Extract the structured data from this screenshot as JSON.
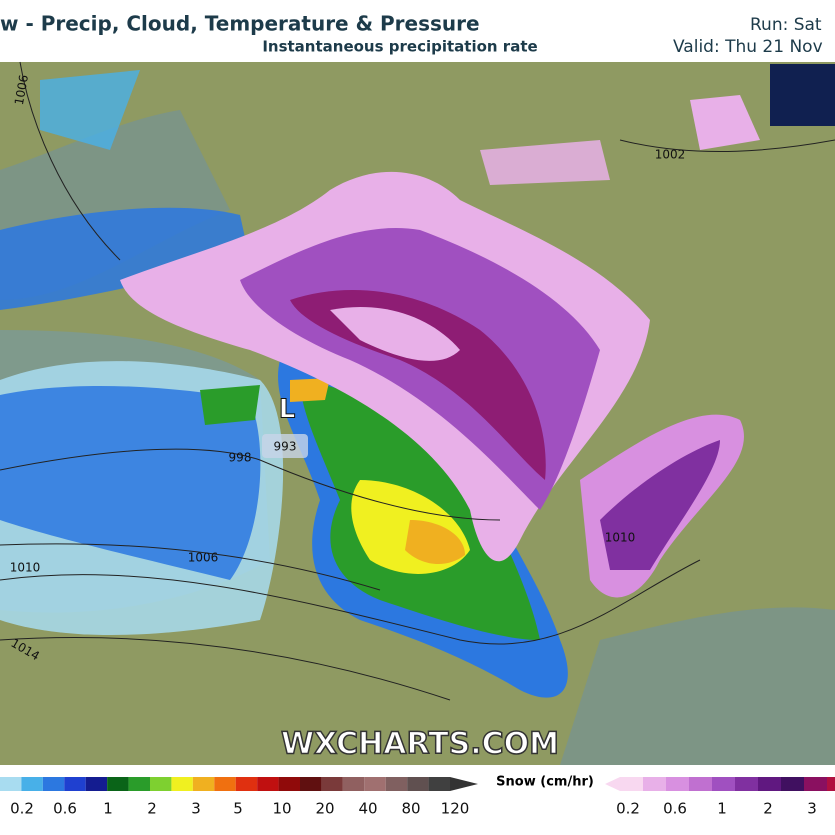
{
  "header": {
    "title": "w - Precip, Cloud, Temperature & Pressure",
    "subtitle": "Instantaneous precipitation rate",
    "run": "Run: Sat",
    "valid": "Valid: Thu 21 Nov"
  },
  "map": {
    "isobar_labels": [
      "1006",
      "1002",
      "998",
      "1006",
      "1010",
      "1010",
      "1014"
    ],
    "low": {
      "symbol": "L",
      "pressure": "993"
    },
    "watermark": "WXCHARTS.COM"
  },
  "legend": {
    "rain": {
      "labels": [
        "0.2",
        "0.6",
        "1",
        "2",
        "3",
        "5",
        "10",
        "20",
        "40",
        "80",
        "120"
      ],
      "colors": [
        "#a8dcf0",
        "#48b0e8",
        "#2c78e0",
        "#1f40d0",
        "#141c90",
        "#0a6418",
        "#2a9c2a",
        "#7ed030",
        "#f0f020",
        "#f0b020",
        "#f07010",
        "#e03010",
        "#c01010",
        "#900a0a",
        "#601010",
        "#7a3a3a",
        "#906060",
        "#a07070",
        "#806060",
        "#605050",
        "#404040"
      ]
    },
    "snow": {
      "title": "Snow (cm/hr)",
      "labels": [
        "0.2",
        "0.6",
        "1",
        "2",
        "3"
      ],
      "colors": [
        "#f8d8f0",
        "#e8b0e8",
        "#d890e0",
        "#c070d0",
        "#a050c0",
        "#8030a0",
        "#601880",
        "#401060",
        "#8a1060",
        "#b01040"
      ]
    }
  }
}
